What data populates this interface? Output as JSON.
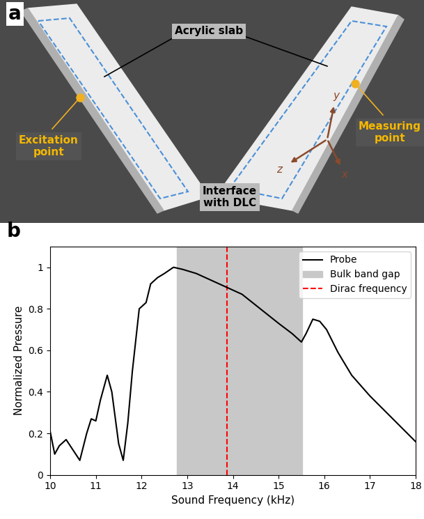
{
  "panel_a": {
    "panel_label": "a",
    "labels": {
      "slab": "Acrylic slab",
      "excitation": "Excitation\npoint",
      "measuring": "Measuring\npoint",
      "interface": "Interface\nwith DLC",
      "axis_x": "x",
      "axis_y": "y",
      "axis_z": "z"
    }
  },
  "chart_data": {
    "type": "line",
    "panel_label": "b",
    "x_label": "Sound Frequency (kHz)",
    "y_label": "Normalized Pressure",
    "xlim": [
      10,
      18
    ],
    "xticks": [
      10,
      11,
      12,
      13,
      14,
      15,
      16,
      17,
      18
    ],
    "ylim": [
      0,
      1.1
    ],
    "yticks": [
      0,
      0.2,
      0.4,
      0.6,
      0.8,
      1
    ],
    "legend": "upper right",
    "series": [
      {
        "name": "Probe",
        "color": "#000000",
        "line_style": "solid",
        "x": [
          10.0,
          10.1,
          10.2,
          10.35,
          10.5,
          10.65,
          10.8,
          10.9,
          11.0,
          11.1,
          11.25,
          11.35,
          11.5,
          11.6,
          11.7,
          11.8,
          11.95,
          12.1,
          12.2,
          12.35,
          12.5,
          12.7,
          12.9,
          13.2,
          13.5,
          13.85,
          14.2,
          14.6,
          15.0,
          15.3,
          15.5,
          15.6,
          15.75,
          15.9,
          16.05,
          16.3,
          16.6,
          17.0,
          17.5,
          18.0
        ],
        "values": [
          0.21,
          0.1,
          0.14,
          0.17,
          0.12,
          0.07,
          0.2,
          0.27,
          0.26,
          0.36,
          0.48,
          0.4,
          0.15,
          0.07,
          0.25,
          0.5,
          0.8,
          0.83,
          0.92,
          0.95,
          0.97,
          1.0,
          0.99,
          0.97,
          0.94,
          0.905,
          0.87,
          0.8,
          0.73,
          0.68,
          0.64,
          0.68,
          0.75,
          0.74,
          0.7,
          0.59,
          0.48,
          0.38,
          0.27,
          0.16
        ]
      }
    ],
    "shaded_regions": [
      {
        "name": "Bulk band gap",
        "color": "#c8c8c8",
        "x": [
          12.78,
          15.52
        ]
      }
    ],
    "vlines": [
      {
        "name": "Dirac frequency",
        "color": "#ff0000",
        "line_style": "dashed",
        "x": 13.87
      }
    ]
  }
}
